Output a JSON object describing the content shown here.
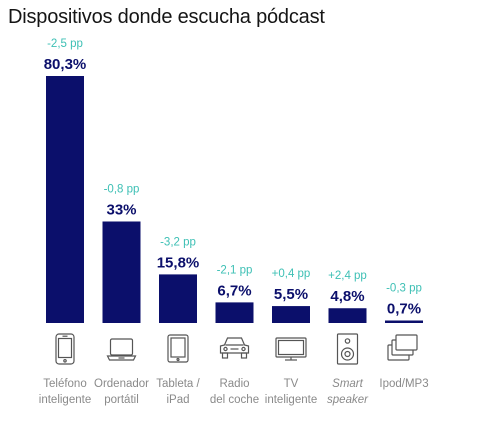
{
  "chart_data": {
    "type": "bar",
    "title": "Dispositivos donde escucha pódcast",
    "categories": [
      "Teléfono\ninteligente",
      "Ordenador\nportátil",
      "Tableta /\niPad",
      "Radio\ndel coche",
      "TV\ninteligente",
      "Smart\nspeaker",
      "Ipod/MP3"
    ],
    "values": [
      80.3,
      33,
      15.8,
      6.7,
      5.5,
      4.8,
      0.7
    ],
    "value_labels": [
      "80,3%",
      "33%",
      "15,8%",
      "6,7%",
      "5,5%",
      "4,8%",
      "0,7%"
    ],
    "changes": [
      "-2,5 pp",
      "-0,8 pp",
      "-3,2 pp",
      "-2,1 pp",
      "+0,4 pp",
      "+2,4 pp",
      "-0,3 pp"
    ],
    "icons": [
      "smartphone-icon",
      "laptop-icon",
      "tablet-icon",
      "car-icon",
      "tv-icon",
      "speaker-icon",
      "mp3-player-icon"
    ],
    "italic_categories": [
      "Smart\nspeaker"
    ],
    "xlabel": "",
    "ylabel": "",
    "ylim": [
      0,
      80.3
    ],
    "grid": false,
    "legend": "none",
    "colors": {
      "bar": "#0b0f6b",
      "value_text": "#0b0f6b",
      "change_text": "#3ec0b5",
      "icon": "#555555",
      "baseline": "#cccccc"
    }
  }
}
